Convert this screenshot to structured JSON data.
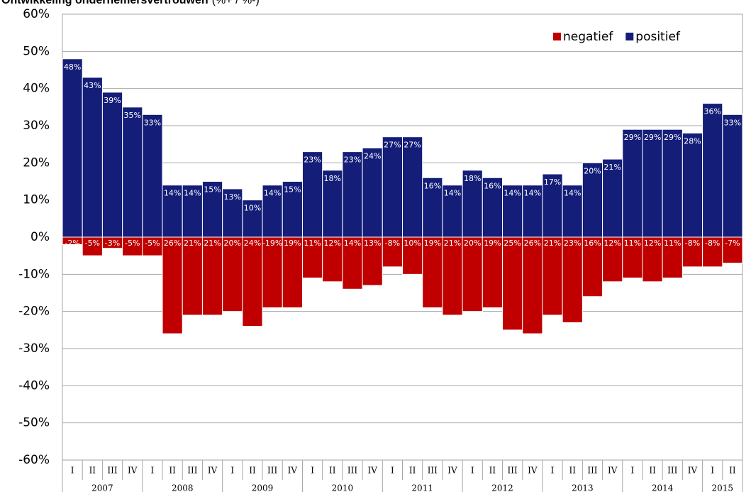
{
  "chart_data": {
    "type": "bar",
    "title": "Ontwikkeling ondernemersvertrouwen",
    "subtitle": "(%+ / %-)",
    "categories": [
      "I",
      "II",
      "III",
      "IV",
      "I",
      "II",
      "III",
      "IV",
      "I",
      "II",
      "III",
      "IV",
      "I",
      "II",
      "III",
      "IV",
      "I",
      "II",
      "III",
      "IV",
      "I",
      "II",
      "III",
      "IV",
      "I",
      "II",
      "III",
      "IV",
      "I",
      "II",
      "III",
      "IV",
      "I",
      "II"
    ],
    "year_labels": [
      "2007",
      "2008",
      "2009",
      "2010",
      "2011",
      "2012",
      "2013",
      "2014",
      "2015"
    ],
    "series": [
      {
        "name": "negatief",
        "color": "#c00000",
        "values": [
          -2,
          -5,
          -3,
          -5,
          -5,
          -26,
          -21,
          -21,
          -20,
          -24,
          -19,
          -19,
          -11,
          -12,
          -14,
          -13,
          -8,
          -10,
          -19,
          -21,
          -20,
          -19,
          -25,
          -26,
          -21,
          -23,
          -16,
          -12,
          -11,
          -12,
          -11,
          -8,
          -8,
          -7
        ],
        "value_labels": [
          "-2%",
          "-5%",
          "-3%",
          "-5%",
          "-5%",
          "26%",
          "21%",
          "21%",
          "20%",
          "24%",
          "-19%",
          "19%",
          "11%",
          "12%",
          "14%",
          "13%",
          "-8%",
          "10%",
          "19%",
          "21%",
          "20%",
          "19%",
          "25%",
          "26%",
          "21%",
          "23%",
          "16%",
          "12%",
          "11%",
          "12%",
          "11%",
          "-8%",
          "-8%",
          "-7%"
        ]
      },
      {
        "name": "positief",
        "color": "#141e78",
        "values": [
          48,
          43,
          39,
          35,
          33,
          14,
          14,
          15,
          13,
          10,
          14,
          15,
          23,
          18,
          23,
          24,
          27,
          27,
          16,
          14,
          18,
          16,
          14,
          14,
          17,
          14,
          20,
          21,
          29,
          29,
          29,
          28,
          36,
          33
        ],
        "value_labels": [
          "48%",
          "43%",
          "39%",
          "35%",
          "33%",
          "14%",
          "14%",
          "15%",
          "13%",
          "10%",
          "14%",
          "15%",
          "23%",
          "18%",
          "23%",
          "24%",
          "27%",
          "27%",
          "16%",
          "14%",
          "18%",
          "16%",
          "14%",
          "14%",
          "17%",
          "14%",
          "20%",
          "21%",
          "29%",
          "29%",
          "29%",
          "28%",
          "36%",
          "33%"
        ]
      }
    ],
    "ylim": [
      -60,
      60
    ],
    "yticks": [
      {
        "value": -60,
        "label": "-60%"
      },
      {
        "value": -50,
        "label": "-50%"
      },
      {
        "value": -40,
        "label": "-40%"
      },
      {
        "value": -30,
        "label": "-30%"
      },
      {
        "value": -20,
        "label": "-20%"
      },
      {
        "value": -10,
        "label": "-10%"
      },
      {
        "value": 0,
        "label": "0%"
      },
      {
        "value": 10,
        "label": "10%"
      },
      {
        "value": 20,
        "label": "20%"
      },
      {
        "value": 30,
        "label": "30%"
      },
      {
        "value": 40,
        "label": "40%"
      },
      {
        "value": 50,
        "label": "50%"
      },
      {
        "value": 60,
        "label": "60%"
      }
    ],
    "grid": true,
    "legend": "top-right"
  }
}
